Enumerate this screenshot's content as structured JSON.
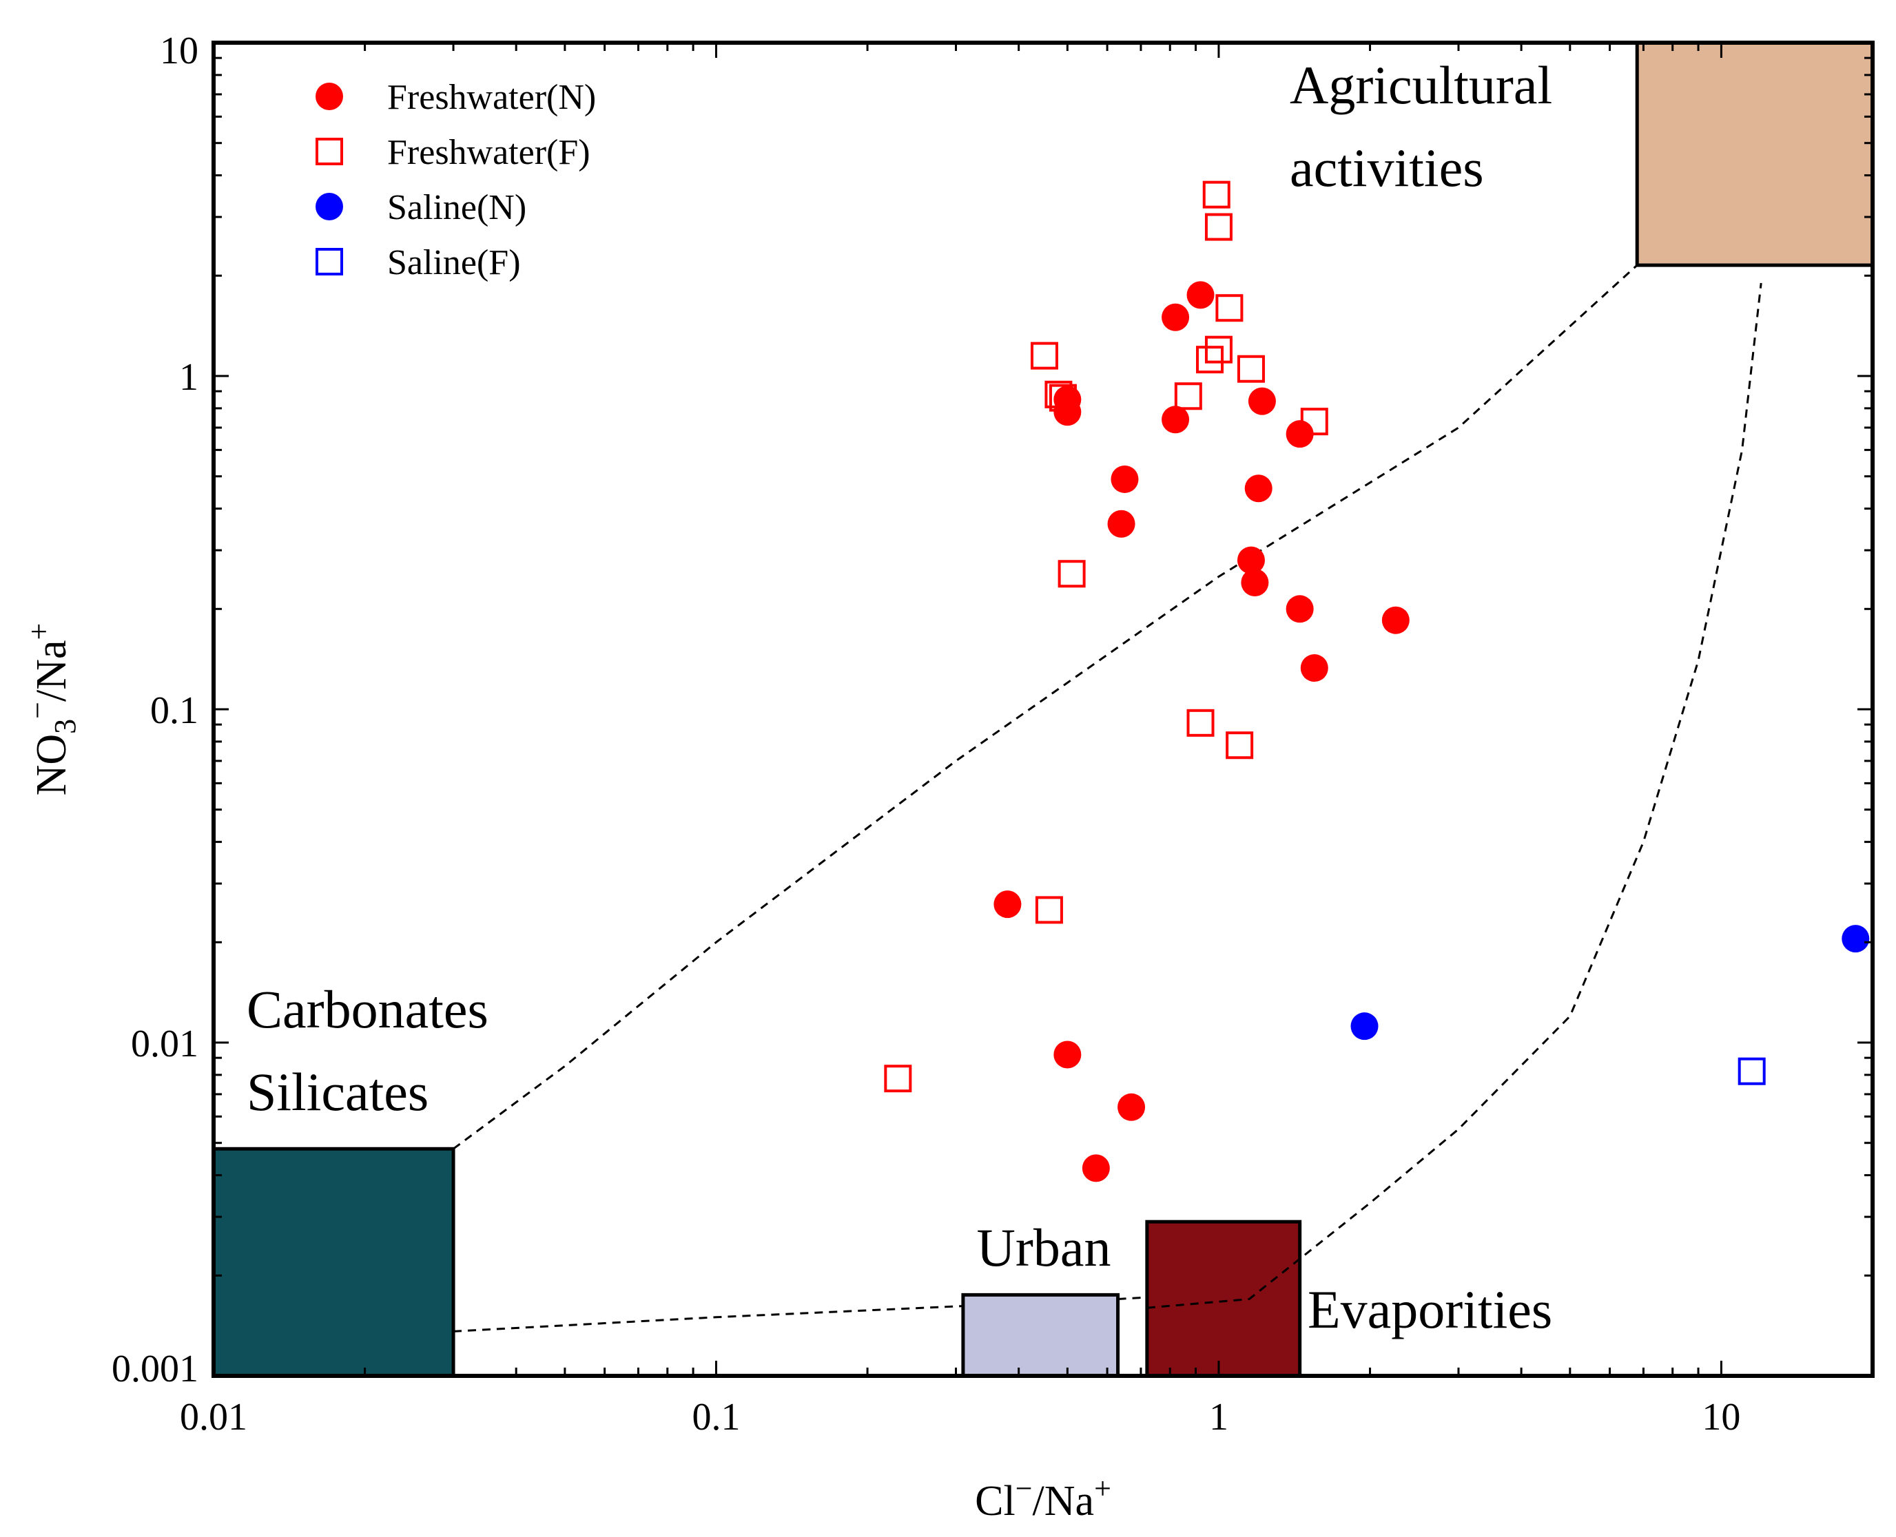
{
  "chart_data": {
    "type": "scatter",
    "title": "",
    "xlabel": {
      "main": "Cl",
      "sup1": "−",
      "mid": "/Na",
      "sup2": "+"
    },
    "ylabel": {
      "main": "NO",
      "sub": "3",
      "sup1": "−",
      "mid": "/Na",
      "sup2": "+"
    },
    "xscale": "log",
    "yscale": "log",
    "xlim": [
      0.01,
      20
    ],
    "ylim": [
      0.001,
      10
    ],
    "x_ticks": [
      {
        "value": 0.01,
        "label": "0.01"
      },
      {
        "value": 0.1,
        "label": "0.1"
      },
      {
        "value": 1,
        "label": "1"
      },
      {
        "value": 10,
        "label": "10"
      }
    ],
    "y_ticks": [
      {
        "value": 0.001,
        "label": "0.001"
      },
      {
        "value": 0.01,
        "label": "0.01"
      },
      {
        "value": 0.1,
        "label": "0.1"
      },
      {
        "value": 1,
        "label": "1"
      },
      {
        "value": 10,
        "label": "10"
      }
    ],
    "grid": false,
    "legend_position": "top-left",
    "series": [
      {
        "name": "Freshwater(N)",
        "marker": "filled-circle",
        "color": "#ff0000",
        "points": [
          [
            0.92,
            1.75
          ],
          [
            0.82,
            1.5
          ],
          [
            0.5,
            0.85
          ],
          [
            0.5,
            0.78
          ],
          [
            0.82,
            0.74
          ],
          [
            1.22,
            0.84
          ],
          [
            1.45,
            0.67
          ],
          [
            0.65,
            0.49
          ],
          [
            1.2,
            0.46
          ],
          [
            0.64,
            0.36
          ],
          [
            1.16,
            0.28
          ],
          [
            1.18,
            0.24
          ],
          [
            1.45,
            0.2
          ],
          [
            2.25,
            0.185
          ],
          [
            1.55,
            0.133
          ],
          [
            0.38,
            0.026
          ],
          [
            0.5,
            0.0092
          ],
          [
            0.67,
            0.0064
          ],
          [
            0.57,
            0.0042
          ]
        ]
      },
      {
        "name": "Freshwater(F)",
        "marker": "open-square",
        "color": "#ff0000",
        "points": [
          [
            0.99,
            3.5
          ],
          [
            1.0,
            2.8
          ],
          [
            1.05,
            1.6
          ],
          [
            0.45,
            1.15
          ],
          [
            0.96,
            1.12
          ],
          [
            1.0,
            1.2
          ],
          [
            1.16,
            1.05
          ],
          [
            0.48,
            0.88
          ],
          [
            0.49,
            0.86
          ],
          [
            0.87,
            0.87
          ],
          [
            1.55,
            0.73
          ],
          [
            0.51,
            0.255
          ],
          [
            0.92,
            0.091
          ],
          [
            1.1,
            0.078
          ],
          [
            0.46,
            0.025
          ],
          [
            0.23,
            0.0078
          ]
        ]
      },
      {
        "name": "Saline(N)",
        "marker": "filled-circle",
        "color": "#0000ff",
        "points": [
          [
            1.95,
            0.0112
          ],
          [
            18.5,
            0.0205
          ]
        ]
      },
      {
        "name": "Saline(F)",
        "marker": "open-square",
        "color": "#0000ff",
        "points": [
          [
            11.5,
            0.0082
          ]
        ]
      }
    ],
    "regions": [
      {
        "name": "Carbonates Silicates",
        "label_lines": [
          "Carbonates",
          "Silicates"
        ],
        "x": [
          0.01,
          0.03
        ],
        "y": [
          0.001,
          0.0048
        ],
        "color": "#0f4f5a"
      },
      {
        "name": "Urban",
        "label_lines": [
          "Urban"
        ],
        "x": [
          0.31,
          0.63
        ],
        "y": [
          0.001,
          0.00175
        ],
        "color": "#c1c2de"
      },
      {
        "name": "Evaporities",
        "label_lines": [
          "Evaporities"
        ],
        "x": [
          0.72,
          1.45
        ],
        "y": [
          0.001,
          0.0029
        ],
        "color": "#840d14"
      },
      {
        "name": "Agricultural activities",
        "label_lines": [
          "Agricultural",
          "activities"
        ],
        "x": [
          6.8,
          20
        ],
        "y": [
          2.15,
          10
        ],
        "color": "#e0b596"
      }
    ],
    "mixing_lines": [
      {
        "name": "carbonates-to-agricultural",
        "points": [
          [
            0.03,
            0.0048
          ],
          [
            0.05,
            0.0085
          ],
          [
            0.1,
            0.02
          ],
          [
            0.3,
            0.07
          ],
          [
            1.0,
            0.25
          ],
          [
            3.0,
            0.7
          ],
          [
            6.8,
            2.15
          ]
        ]
      },
      {
        "name": "carbonates-to-urban",
        "points": [
          [
            0.03,
            0.00136
          ],
          [
            0.1,
            0.0015
          ],
          [
            0.31,
            0.00162
          ]
        ]
      },
      {
        "name": "urban-to-evaporities",
        "points": [
          [
            0.63,
            0.0017
          ],
          [
            0.72,
            0.00172
          ]
        ]
      },
      {
        "name": "evaporities-to-agricultural",
        "points": [
          [
            0.72,
            0.0016
          ],
          [
            1.15,
            0.0017
          ],
          [
            2.0,
            0.0033
          ],
          [
            3.0,
            0.0055
          ],
          [
            5.0,
            0.012
          ],
          [
            7.0,
            0.04
          ],
          [
            9.0,
            0.14
          ],
          [
            11.0,
            0.6
          ],
          [
            12.0,
            1.9
          ]
        ]
      }
    ]
  }
}
